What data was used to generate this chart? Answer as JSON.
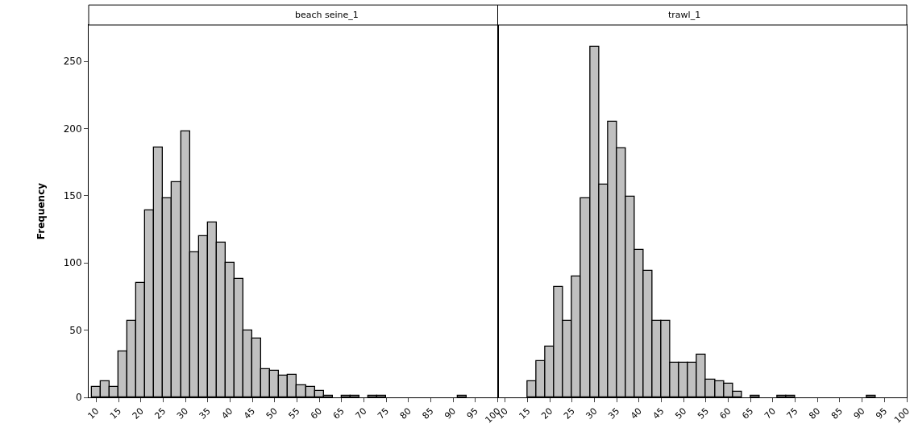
{
  "chart_data": [
    {
      "type": "histogram",
      "title": "beach seine_1",
      "ylabel": "Frequency",
      "color": "#c0c0c0",
      "bins": [
        9,
        11,
        13,
        15,
        17,
        19,
        21,
        23,
        25,
        27,
        29,
        31,
        33,
        35,
        37,
        39,
        41,
        43,
        45,
        47,
        49,
        51,
        53,
        55,
        57,
        59,
        61,
        63,
        65,
        67,
        69,
        71,
        73,
        75,
        77,
        79,
        81,
        83,
        85,
        87,
        89,
        91,
        93,
        95,
        97,
        99
      ],
      "values": [
        8,
        12,
        8,
        34,
        57,
        85,
        139,
        186,
        148,
        160,
        198,
        108,
        120,
        130,
        115,
        100,
        88,
        50,
        44,
        21,
        20,
        16,
        17,
        9,
        8,
        5,
        1,
        0,
        1,
        1,
        0,
        1,
        1,
        0,
        0,
        0,
        0,
        0,
        0,
        0,
        0,
        1,
        0,
        0,
        0
      ],
      "xlim": [
        8.3,
        100
      ],
      "xticks": [
        10,
        15,
        20,
        25,
        30,
        35,
        40,
        45,
        50,
        55,
        60,
        65,
        70,
        75,
        80,
        85,
        90,
        95,
        100
      ],
      "ylim": [
        0,
        277
      ],
      "yticks": [
        0,
        50,
        100,
        150,
        200,
        250
      ],
      "grid": false
    },
    {
      "type": "histogram",
      "title": "trawl_1",
      "color": "#c0c0c0",
      "bins": [
        9,
        11,
        13,
        15,
        17,
        19,
        21,
        23,
        25,
        27,
        29,
        31,
        33,
        35,
        37,
        39,
        41,
        43,
        45,
        47,
        49,
        51,
        53,
        55,
        57,
        59,
        61,
        63,
        65,
        67,
        69,
        71,
        73,
        75,
        77,
        79,
        81,
        83,
        85,
        87,
        89,
        91,
        93,
        95,
        97,
        99
      ],
      "values": [
        0,
        0,
        0,
        12,
        27,
        38,
        82,
        57,
        90,
        148,
        261,
        158,
        205,
        185,
        149,
        110,
        94,
        57,
        57,
        26,
        26,
        26,
        32,
        13,
        12,
        10,
        4,
        0,
        1,
        0,
        0,
        1,
        1,
        0,
        0,
        0,
        0,
        0,
        0,
        0,
        0,
        1,
        0,
        0,
        0
      ],
      "xlim": [
        8.3,
        100
      ],
      "xticks": [
        10,
        15,
        20,
        25,
        30,
        35,
        40,
        45,
        50,
        55,
        60,
        65,
        70,
        75,
        80,
        85,
        90,
        95,
        100
      ],
      "ylim": [
        0,
        277
      ],
      "yticks": [
        0,
        50,
        100,
        150,
        200,
        250
      ],
      "tick_labels": "x",
      "grid": false
    }
  ]
}
